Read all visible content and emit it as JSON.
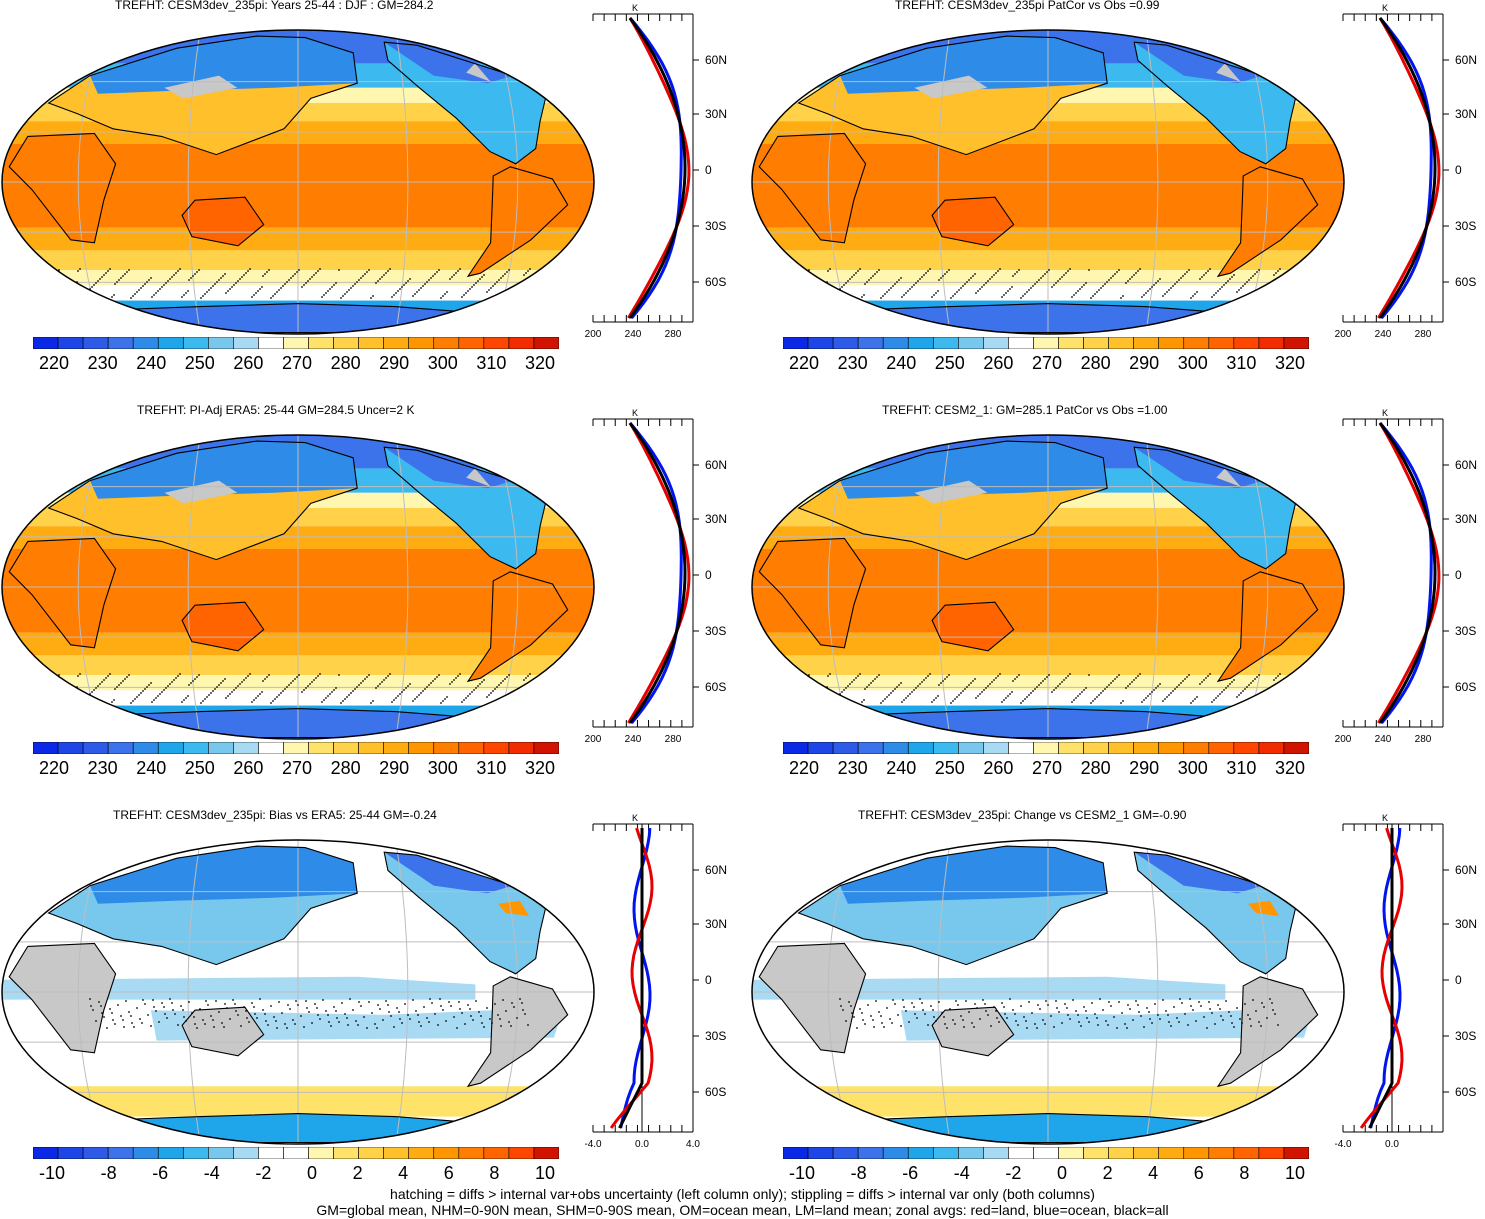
{
  "colors": {
    "abs_scale": [
      "#0a28e6",
      "#1e46e6",
      "#2d5ae6",
      "#3c73eb",
      "#2f8be8",
      "#1ea5ea",
      "#3cb9ee",
      "#78c8ee",
      "#a8daf4",
      "#ffffff",
      "#fff7b0",
      "#ffe26a",
      "#ffd24a",
      "#ffc02c",
      "#ffab12",
      "#ff9600",
      "#ff7d00",
      "#ff6400",
      "#ff4600",
      "#f02c00",
      "#d01400"
    ],
    "diff_scale": [
      "#0a28e6",
      "#1e46e6",
      "#2d5ae6",
      "#3c73eb",
      "#2f8be8",
      "#1ea5ea",
      "#3cb9ee",
      "#78c8ee",
      "#a8daf4",
      "#ffffff",
      "#ffffff",
      "#fff7b0",
      "#ffe26a",
      "#ffd24a",
      "#ffc02c",
      "#ffab12",
      "#ff9600",
      "#ff7d00",
      "#ff6400",
      "#ff4600",
      "#d01400"
    ],
    "land": "#c8c8c8",
    "zonal_land": "#e60000",
    "zonal_ocean": "#0014f0",
    "zonal_all": "#000000"
  },
  "panels": [
    {
      "title": "TREFHT: CESM3dev_235pi: Years 25-44 : DJF : GM=284.2",
      "kind": "abs",
      "colorbar_labels": [
        "220",
        "230",
        "240",
        "250",
        "260",
        "270",
        "280",
        "290",
        "300",
        "310",
        "320"
      ],
      "zonal_ticks": [
        "200",
        "240",
        "280"
      ],
      "zonal_unit": "K",
      "lat_labels": [
        "60N",
        "30N",
        "0",
        "30S",
        "60S"
      ]
    },
    {
      "title": "TREFHT: CESM3dev_235pi PatCor vs Obs =0.99",
      "kind": "abs",
      "colorbar_labels": [
        "220",
        "230",
        "240",
        "250",
        "260",
        "270",
        "280",
        "290",
        "300",
        "310",
        "320"
      ],
      "zonal_ticks": [
        "200",
        "240",
        "280"
      ],
      "zonal_unit": "K",
      "lat_labels": [
        "60N",
        "30N",
        "0",
        "30S",
        "60S"
      ]
    },
    {
      "title": "TREFHT: PI-Adj ERA5: 25-44 GM=284.5 Uncer=2 K",
      "kind": "abs",
      "colorbar_labels": [
        "220",
        "230",
        "240",
        "250",
        "260",
        "270",
        "280",
        "290",
        "300",
        "310",
        "320"
      ],
      "zonal_ticks": [
        "200",
        "240",
        "280"
      ],
      "zonal_unit": "K",
      "lat_labels": [
        "60N",
        "30N",
        "0",
        "30S",
        "60S"
      ]
    },
    {
      "title": "TREFHT: CESM2_1: GM=285.1 PatCor vs Obs =1.00",
      "kind": "abs",
      "colorbar_labels": [
        "220",
        "230",
        "240",
        "250",
        "260",
        "270",
        "280",
        "290",
        "300",
        "310",
        "320"
      ],
      "zonal_ticks": [
        "200",
        "240",
        "280"
      ],
      "zonal_unit": "K",
      "lat_labels": [
        "60N",
        "30N",
        "0",
        "30S",
        "60S"
      ]
    },
    {
      "title": "TREFHT: CESM3dev_235pi: Bias vs ERA5: 25-44 GM=-0.24",
      "kind": "diff",
      "colorbar_labels": [
        "-10",
        "-8",
        "-6",
        "-4",
        "-2",
        "0",
        "2",
        "4",
        "6",
        "8",
        "10"
      ],
      "zonal_ticks": [
        "-4.0",
        "0.0",
        "4.0"
      ],
      "zonal_unit": "K",
      "lat_labels": [
        "60N",
        "30N",
        "0",
        "30S",
        "60S"
      ]
    },
    {
      "title": "TREFHT: CESM3dev_235pi: Change vs CESM2_1 GM=-0.90",
      "kind": "diff",
      "colorbar_labels": [
        "-10",
        "-8",
        "-6",
        "-4",
        "-2",
        "0",
        "2",
        "4",
        "6",
        "8",
        "10"
      ],
      "zonal_ticks": [
        "-4.0",
        "0.0"
      ],
      "zonal_unit": "K",
      "lat_labels": [
        "60N",
        "30N",
        "0",
        "30S",
        "60S"
      ]
    }
  ],
  "footer": {
    "line1": "hatching = diffs > internal var+obs uncertainty (left column only); stippling = diffs > internal var only (both columns)",
    "line2": "GM=global mean, NHM=0-90N mean, SHM=0-90S mean, OM=ocean mean, LM=land mean; zonal avgs: red=land, blue=ocean, black=all"
  }
}
